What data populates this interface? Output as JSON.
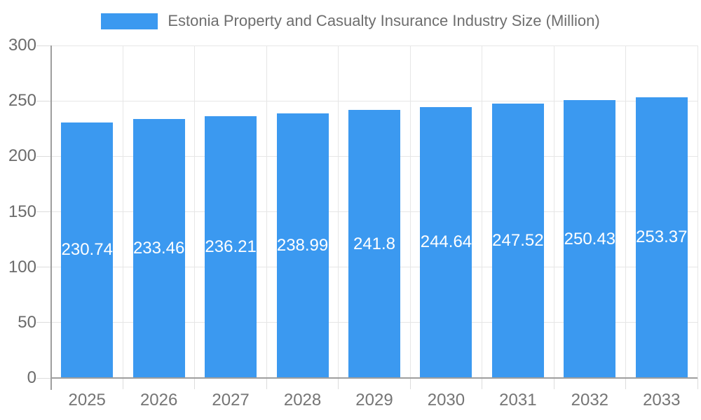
{
  "legend": {
    "label": "Estonia Property and Casualty Insurance Industry Size (Million)"
  },
  "colors": {
    "bar": "#3b99f0",
    "grid": "#e6e6e6",
    "axis": "#9e9e9e",
    "tick": "#dcdcdc",
    "y_axis_text": "#6b6b6b",
    "x_axis_text": "#757575",
    "legend_text": "#6e6e6e",
    "value_text": "#ffffff",
    "background": "#ffffff"
  },
  "chart_data": {
    "type": "bar",
    "title": "Estonia Property and Casualty Insurance Industry Size (Million)",
    "categories": [
      "2025",
      "2026",
      "2027",
      "2028",
      "2029",
      "2030",
      "2031",
      "2032",
      "2033"
    ],
    "values": [
      230.74,
      233.46,
      236.21,
      238.99,
      241.8,
      244.64,
      247.52,
      250.43,
      253.37
    ],
    "value_labels": [
      "230.74",
      "233.46",
      "236.21",
      "238.99",
      "241.8",
      "244.64",
      "247.52",
      "250.43",
      "253.37"
    ],
    "series_name": "Estonia Property and Casualty Insurance Industry Size (Million)",
    "xlabel": "",
    "ylabel": "",
    "ylim": [
      0,
      300
    ],
    "yticks": [
      0,
      50,
      100,
      150,
      200,
      250,
      300
    ],
    "grid": true,
    "legend_position": "top",
    "bar_color": "#3b99f0",
    "value_label_position": "inside-middle"
  }
}
